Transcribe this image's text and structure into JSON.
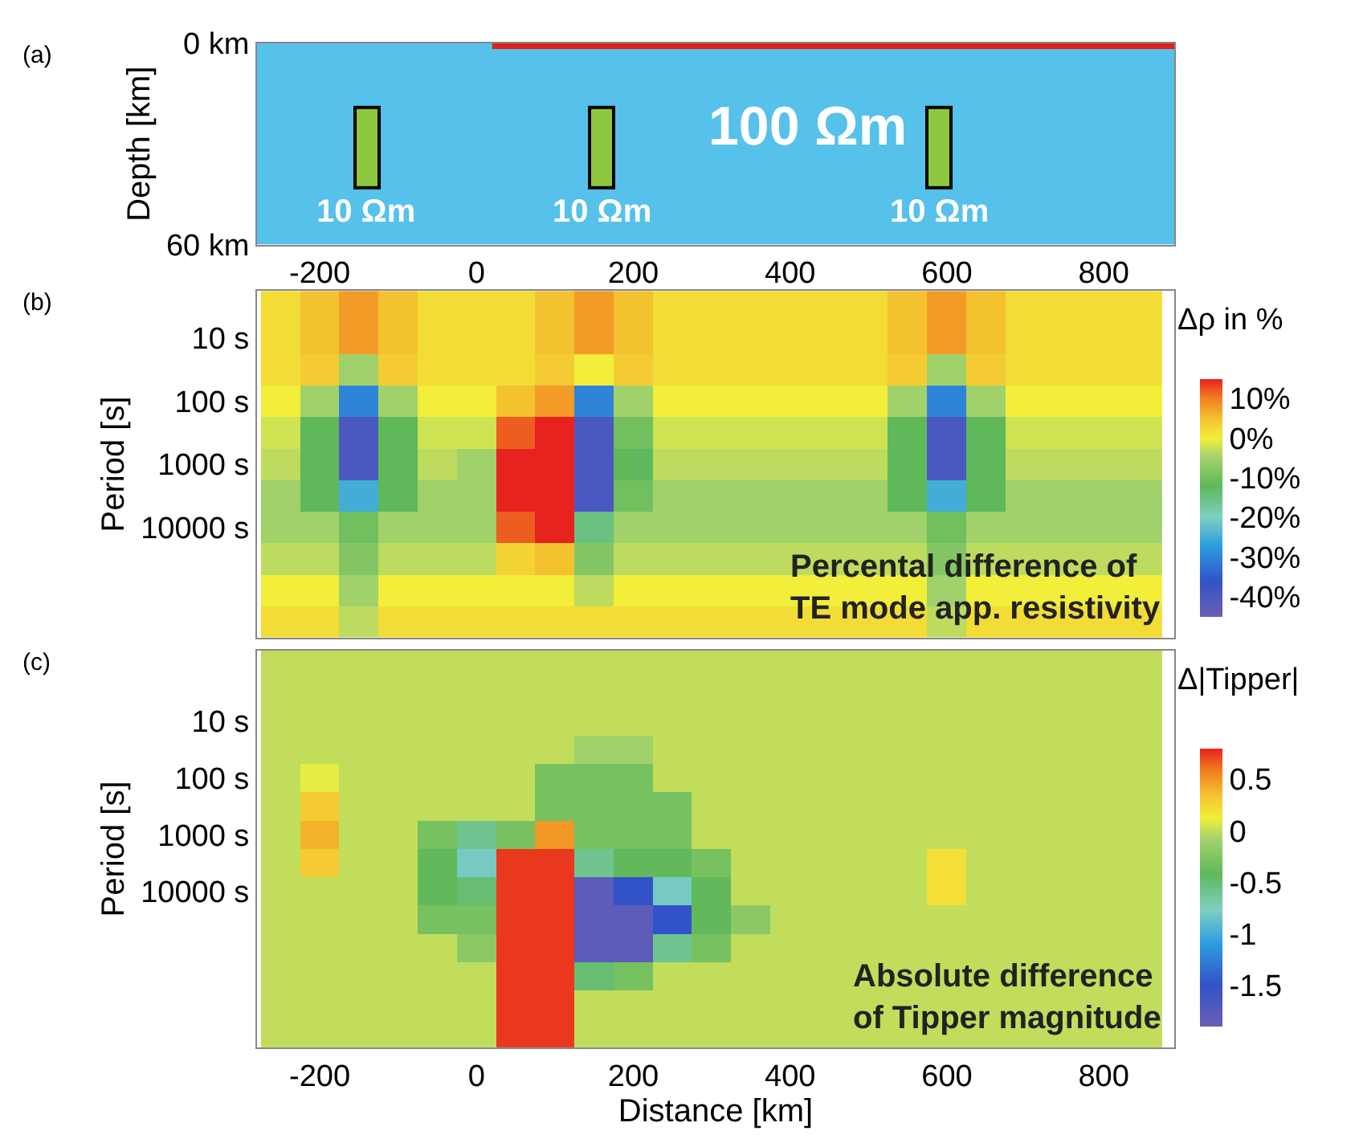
{
  "chart_data": [
    {
      "type": "bar",
      "ylabel": "Depth [km]",
      "xlim": [
        -280,
        890
      ],
      "xticks": [
        -200,
        0,
        200,
        400,
        600,
        800
      ],
      "ylim": [
        60,
        0
      ],
      "yticks": [
        {
          "value": 0,
          "label": "0 km"
        },
        {
          "value": 60,
          "label": "60 km"
        }
      ],
      "grid": false,
      "series": [
        {
          "type": "bar",
          "color": "#8dc63f",
          "x": [
            -140,
            160,
            590
          ],
          "base": [
            19,
            19,
            19
          ],
          "values": [
            24,
            24,
            24
          ]
        },
        {
          "type": "area",
          "color": "#e0201b",
          "x": [
            20,
            890
          ],
          "values": [
            1.5,
            1.5
          ]
        }
      ],
      "bands": [
        {
          "axis": "y",
          "from": 0,
          "to": 60,
          "color": "#56c1ea"
        }
      ],
      "annotations": [
        "(a)",
        "100 Ωm",
        "10 Ωm",
        "10 Ωm",
        "10 Ωm"
      ]
    },
    {
      "type": "heatmap",
      "ylabel": "Period [s]",
      "tick_labels": "y",
      "xlim": [
        -280,
        890
      ],
      "xticks": [
        -200,
        0,
        200,
        400,
        600,
        800
      ],
      "clabel": "Δρ in %",
      "clim": [
        -45,
        15
      ],
      "cticks": [
        {
          "value": 10,
          "label": "10%"
        },
        {
          "value": 0,
          "label": "0%"
        },
        {
          "value": -10,
          "label": "-10%"
        },
        {
          "value": -20,
          "label": "-20%"
        },
        {
          "value": -30,
          "label": "-30%"
        },
        {
          "value": -40,
          "label": "-40%"
        }
      ],
      "x": [
        -250,
        -200,
        -150,
        -100,
        -50,
        0,
        50,
        100,
        150,
        200,
        250,
        300,
        350,
        400,
        450,
        500,
        550,
        600,
        650,
        700,
        750,
        800,
        850
      ],
      "y_categories": [
        null,
        "10 s",
        null,
        "100 s",
        null,
        "1000 s",
        null,
        "10000 s",
        null,
        null,
        null
      ],
      "cells": [
        [
          2,
          5,
          8,
          5,
          2,
          2,
          2,
          5,
          8,
          5,
          2,
          2,
          2,
          2,
          2,
          2,
          5,
          8,
          5,
          2,
          2,
          2,
          2
        ],
        [
          2,
          5,
          8,
          5,
          2,
          2,
          2,
          5,
          8,
          5,
          2,
          2,
          2,
          2,
          2,
          2,
          5,
          8,
          5,
          2,
          2,
          2,
          2
        ],
        [
          2,
          4,
          -5,
          4,
          2,
          2,
          2,
          4,
          0,
          4,
          2,
          2,
          2,
          2,
          2,
          2,
          4,
          -5,
          4,
          2,
          2,
          2,
          2
        ],
        [
          0,
          -5,
          -30,
          -5,
          0,
          0,
          5,
          8,
          -30,
          -5,
          0,
          0,
          0,
          0,
          0,
          0,
          -5,
          -30,
          -5,
          0,
          0,
          0,
          0
        ],
        [
          -2,
          -12,
          -40,
          -12,
          -2,
          -2,
          12,
          15,
          -40,
          -10,
          -2,
          -2,
          -2,
          -2,
          -2,
          -2,
          -12,
          -40,
          -12,
          -2,
          -2,
          -2,
          -2
        ],
        [
          -3,
          -12,
          -40,
          -12,
          -3,
          -5,
          15,
          15,
          -40,
          -12,
          -3,
          -3,
          -3,
          -3,
          -3,
          -3,
          -12,
          -40,
          -12,
          -3,
          -3,
          -3,
          -3
        ],
        [
          -5,
          -12,
          -25,
          -12,
          -5,
          -5,
          15,
          15,
          -40,
          -10,
          -5,
          -5,
          -5,
          -5,
          -5,
          -5,
          -12,
          -25,
          -12,
          -5,
          -5,
          -5,
          -5
        ],
        [
          -5,
          -5,
          -10,
          -5,
          -5,
          -5,
          12,
          15,
          -15,
          -5,
          -5,
          -5,
          -5,
          -5,
          -5,
          -5,
          -5,
          -10,
          -5,
          -5,
          -5,
          -5,
          -5
        ],
        [
          -3,
          -3,
          -8,
          -3,
          -3,
          -3,
          3,
          5,
          -8,
          -3,
          -3,
          -3,
          -3,
          -3,
          -3,
          -3,
          -3,
          -8,
          -3,
          -3,
          -3,
          -3,
          -3
        ],
        [
          0,
          0,
          -5,
          0,
          0,
          0,
          0,
          0,
          -3,
          0,
          0,
          0,
          0,
          0,
          0,
          0,
          0,
          -5,
          0,
          0,
          0,
          0,
          0
        ],
        [
          2,
          2,
          -3,
          2,
          2,
          2,
          2,
          2,
          2,
          2,
          2,
          2,
          2,
          2,
          2,
          2,
          2,
          -3,
          2,
          2,
          2,
          2,
          2
        ]
      ],
      "annotations": [
        "(b)",
        "Percental difference of\nTE mode app. resistivity"
      ]
    },
    {
      "type": "heatmap",
      "ylabel": "Period [s]",
      "xlabel": "Distance [km]",
      "xlim": [
        -280,
        890
      ],
      "xticks": [
        -200,
        0,
        200,
        400,
        600,
        800
      ],
      "clabel": "Δ|Tipper|",
      "clim": [
        -1.9,
        0.8
      ],
      "cticks": [
        0.5,
        0,
        -0.5,
        -1,
        -1.5
      ],
      "x": [
        -250,
        -200,
        -150,
        -100,
        -50,
        0,
        50,
        100,
        150,
        200,
        250,
        300,
        350,
        400,
        450,
        500,
        550,
        600,
        650,
        700,
        750,
        800,
        850
      ],
      "y_categories": [
        null,
        null,
        "10 s",
        null,
        "100 s",
        null,
        "1000 s",
        null,
        "10000 s",
        null,
        null,
        null,
        null,
        null
      ],
      "cells": [
        [
          0,
          0,
          0,
          0,
          0,
          0,
          0,
          0,
          0,
          0,
          0,
          0,
          0,
          0,
          0,
          0,
          0,
          0,
          0,
          0,
          0,
          0,
          0
        ],
        [
          0,
          0,
          0,
          0,
          0,
          0,
          0,
          0,
          0,
          0,
          0,
          0,
          0,
          0,
          0,
          0,
          0,
          0,
          0,
          0,
          0,
          0,
          0
        ],
        [
          0,
          0,
          0,
          0,
          0,
          0,
          0,
          0,
          0,
          0,
          0,
          0,
          0,
          0,
          0,
          0,
          0,
          0,
          0,
          0,
          0,
          0,
          0
        ],
        [
          0,
          0,
          0,
          0,
          0,
          0,
          0,
          0,
          -0.1,
          -0.1,
          0,
          0,
          0,
          0,
          0,
          0,
          0,
          0,
          0,
          0,
          0,
          0,
          0
        ],
        [
          0,
          0.1,
          0,
          0,
          0,
          0,
          0,
          -0.3,
          -0.3,
          -0.3,
          0,
          0,
          0,
          0,
          0,
          0,
          0,
          0,
          0,
          0,
          0,
          0,
          0
        ],
        [
          0,
          0.3,
          0,
          0,
          0,
          0,
          0,
          -0.3,
          -0.3,
          -0.3,
          -0.3,
          0,
          0,
          0,
          0,
          0,
          0,
          0,
          0,
          0,
          0,
          0,
          0
        ],
        [
          0,
          0.4,
          0,
          0,
          -0.3,
          -0.6,
          -0.3,
          0.5,
          -0.3,
          -0.3,
          -0.3,
          0,
          0,
          0,
          0,
          0,
          0,
          0,
          0,
          0,
          0,
          0,
          0
        ],
        [
          0,
          0.3,
          0,
          0,
          -0.4,
          -0.8,
          0.75,
          0.75,
          -0.6,
          -0.4,
          -0.4,
          -0.3,
          0,
          0,
          0,
          0,
          0,
          0.2,
          0,
          0,
          0,
          0,
          0
        ],
        [
          0,
          0,
          0,
          0,
          -0.4,
          -0.5,
          0.75,
          0.75,
          -1.8,
          -1.5,
          -0.8,
          -0.4,
          0,
          0,
          0,
          0,
          0,
          0.2,
          0,
          0,
          0,
          0,
          0
        ],
        [
          0,
          0,
          0,
          0,
          -0.3,
          -0.3,
          0.75,
          0.75,
          -1.8,
          -1.8,
          -1.5,
          -0.4,
          -0.2,
          0,
          0,
          0,
          0,
          0,
          0,
          0,
          0,
          0,
          0
        ],
        [
          0,
          0,
          0,
          0,
          0,
          -0.2,
          0.75,
          0.75,
          -1.8,
          -1.8,
          -0.6,
          -0.3,
          0,
          0,
          0,
          0,
          0,
          0,
          0,
          0,
          0,
          0,
          0
        ],
        [
          0,
          0,
          0,
          0,
          0,
          0,
          0.75,
          0.75,
          -0.5,
          -0.3,
          0,
          0,
          0,
          0,
          0,
          0,
          0,
          0,
          0,
          0,
          0,
          0,
          0
        ],
        [
          0,
          0,
          0,
          0,
          0,
          0,
          0.75,
          0.75,
          0,
          0,
          0,
          0,
          0,
          0,
          0,
          0,
          0,
          0,
          0,
          0,
          0,
          0,
          0
        ],
        [
          0,
          0,
          0,
          0,
          0,
          0,
          0.75,
          0.75,
          0,
          0,
          0,
          0,
          0,
          0,
          0,
          0,
          0,
          0,
          0,
          0,
          0,
          0,
          0
        ]
      ],
      "annotations": [
        "(c)",
        "Absolute difference\nof Tipper magnitude"
      ]
    }
  ]
}
